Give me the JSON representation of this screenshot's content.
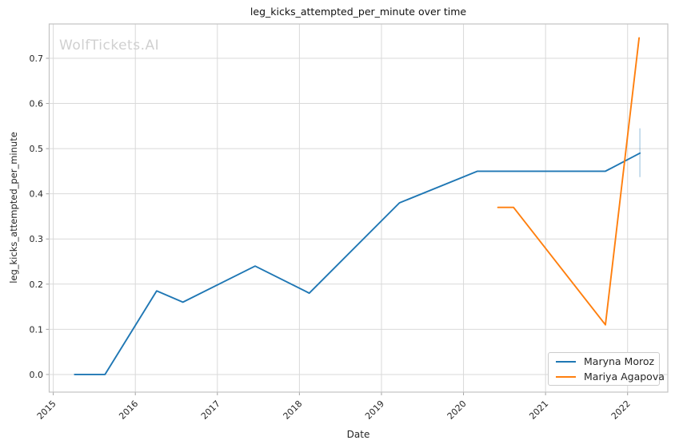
{
  "title": "leg_kicks_attempted_per_minute over time",
  "watermark": "WolfTickets.AI",
  "axes": {
    "x_label": "Date",
    "y_label": "leg_kicks_attempted_per_minute"
  },
  "legend": {
    "position": "lower right",
    "items": [
      {
        "label": "Maryna Moroz",
        "color": "#1f77b4"
      },
      {
        "label": "Mariya Agapova",
        "color": "#ff7f0e"
      }
    ]
  },
  "colors": {
    "background": "#ffffff",
    "grid": "#d9d9d9",
    "border": "#c3c3c3",
    "tick": "#a3a3a3",
    "text": "#262626",
    "title_text": "#111111",
    "watermark_text": "#d0d0d0",
    "series_blue": "#1f77b4",
    "series_orange": "#ff7f0e",
    "error_bar": "rgba(31,119,180,0.32)"
  },
  "chart_data": {
    "type": "line",
    "title": "leg_kicks_attempted_per_minute over time",
    "xlabel": "Date",
    "ylabel": "leg_kicks_attempted_per_minute",
    "grid": true,
    "legend_position": "lower right",
    "xlim": [
      2014.95,
      2022.49
    ],
    "ylim": [
      -0.039,
      0.776
    ],
    "x_ticks": [
      {
        "value": 2015,
        "label": "2015"
      },
      {
        "value": 2016,
        "label": "2016"
      },
      {
        "value": 2017,
        "label": "2017"
      },
      {
        "value": 2018,
        "label": "2018"
      },
      {
        "value": 2019,
        "label": "2019"
      },
      {
        "value": 2020,
        "label": "2020"
      },
      {
        "value": 2021,
        "label": "2021"
      },
      {
        "value": 2022,
        "label": "2022"
      }
    ],
    "y_ticks": [
      {
        "value": 0.0,
        "label": "0.0"
      },
      {
        "value": 0.1,
        "label": "0.1"
      },
      {
        "value": 0.2,
        "label": "0.2"
      },
      {
        "value": 0.3,
        "label": "0.3"
      },
      {
        "value": 0.4,
        "label": "0.4"
      },
      {
        "value": 0.5,
        "label": "0.5"
      },
      {
        "value": 0.6,
        "label": "0.6"
      },
      {
        "value": 0.7,
        "label": "0.7"
      }
    ],
    "series": [
      {
        "name": "Maryna Moroz",
        "color": "#1f77b4",
        "points": [
          [
            2015.26,
            0.0
          ],
          [
            2015.63,
            0.0
          ],
          [
            2016.26,
            0.185
          ],
          [
            2016.58,
            0.16
          ],
          [
            2017.46,
            0.24
          ],
          [
            2018.12,
            0.18
          ],
          [
            2019.22,
            0.38
          ],
          [
            2020.17,
            0.45
          ],
          [
            2021.73,
            0.45
          ],
          [
            2022.15,
            0.49
          ]
        ]
      },
      {
        "name": "Mariya Agapova",
        "color": "#ff7f0e",
        "points": [
          [
            2020.42,
            0.37
          ],
          [
            2020.61,
            0.37
          ],
          [
            2021.73,
            0.11
          ],
          [
            2022.14,
            0.745
          ]
        ]
      }
    ],
    "error_bar": {
      "series": "Maryna Moroz",
      "x": 2022.15,
      "y_range": [
        0.437,
        0.545
      ],
      "color": "rgba(31,119,180,0.32)"
    }
  }
}
